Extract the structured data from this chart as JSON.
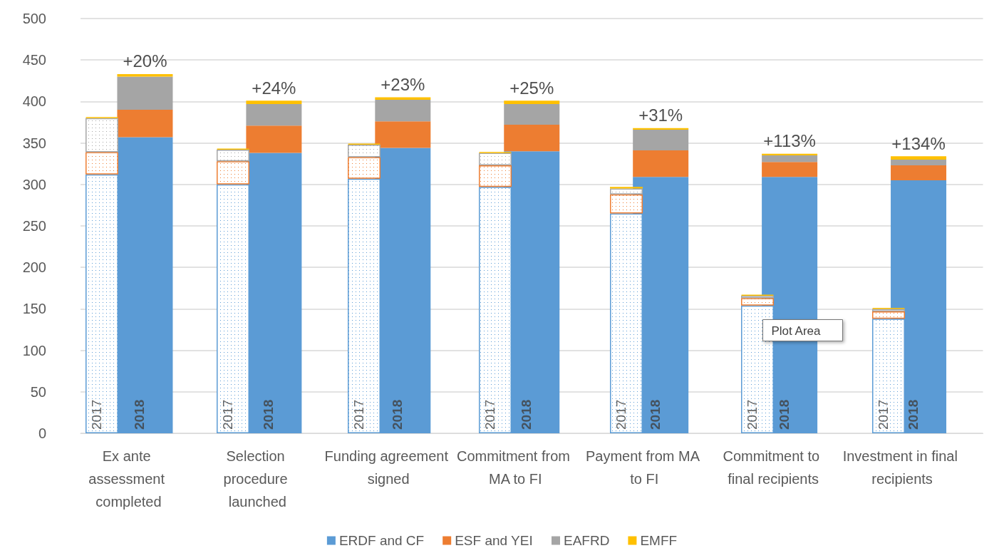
{
  "chart_data": [
    {
      "type": "bar",
      "stacked": true,
      "categories": [
        "Ex ante assessment completed",
        "Selection procedure launched",
        "Funding agreement signed",
        "Commitment from MA to FI",
        "Payment from MA to FI",
        "Commitment to final recipients",
        "Investment in final recipients"
      ],
      "series": [
        {
          "color": "#5b9bd5",
          "values": [
            312,
            300,
            307,
            297,
            265,
            154,
            138
          ]
        },
        {
          "color": "#ed7d31",
          "values": [
            27,
            28,
            26,
            26,
            23,
            9,
            9
          ]
        },
        {
          "color": "#a5a5a5",
          "values": [
            41,
            14,
            15,
            15,
            7,
            3,
            3
          ]
        },
        {
          "color": "#ffc000",
          "values": [
            1,
            1,
            1,
            1,
            2,
            1,
            1
          ]
        }
      ],
      "ylim": [
        0,
        500
      ],
      "yticks": [
        0,
        50,
        100,
        150,
        200,
        250,
        300,
        350,
        400,
        450,
        500
      ],
      "tick_labels": false,
      "annotations": [
        "2017",
        "Plot Area"
      ]
    },
    {
      "type": "bar",
      "stacked": true,
      "categories": [
        "Ex ante assessment completed",
        "Selection procedure launched",
        "Funding agreement signed",
        "Commitment from MA to FI",
        "Payment from MA to FI",
        "Commitment to final recipients",
        "Investment in final recipients"
      ],
      "series": [
        {
          "name": "ERDF and CF",
          "color": "#5b9bd5",
          "values": [
            357,
            338,
            344,
            340,
            309,
            309,
            305
          ]
        },
        {
          "name": "ESF and YEI",
          "color": "#ed7d31",
          "values": [
            33,
            33,
            32,
            32,
            32,
            18,
            18
          ]
        },
        {
          "name": "EAFRD",
          "color": "#a5a5a5",
          "values": [
            40,
            26,
            26,
            25,
            25,
            8,
            7
          ]
        },
        {
          "name": "EMFF",
          "color": "#ffc000",
          "values": [
            3,
            4,
            3,
            4,
            2,
            2,
            4
          ]
        }
      ],
      "ylim": [
        0,
        500
      ],
      "yticks": [
        0,
        50,
        100,
        150,
        200,
        250,
        300,
        350,
        400,
        450,
        500
      ],
      "grid": "y",
      "legend": "bottom",
      "annotations": [
        "2018",
        {
          "text": "+20%",
          "x": "Ex ante assessment completed",
          "y": 433
        },
        {
          "text": "+24%",
          "x": "Selection procedure launched",
          "y": 401
        },
        {
          "text": "+23%",
          "x": "Funding agreement signed",
          "y": 405
        },
        {
          "text": "+25%",
          "x": "Commitment from MA to FI",
          "y": 401
        },
        {
          "text": "+31%",
          "x": "Payment from MA to FI",
          "y": 368
        },
        {
          "text": "+113%",
          "x": "Commitment to final recipients",
          "y": 337
        },
        {
          "text": "+134%",
          "x": "Investment in final recipients",
          "y": 334
        }
      ]
    }
  ]
}
